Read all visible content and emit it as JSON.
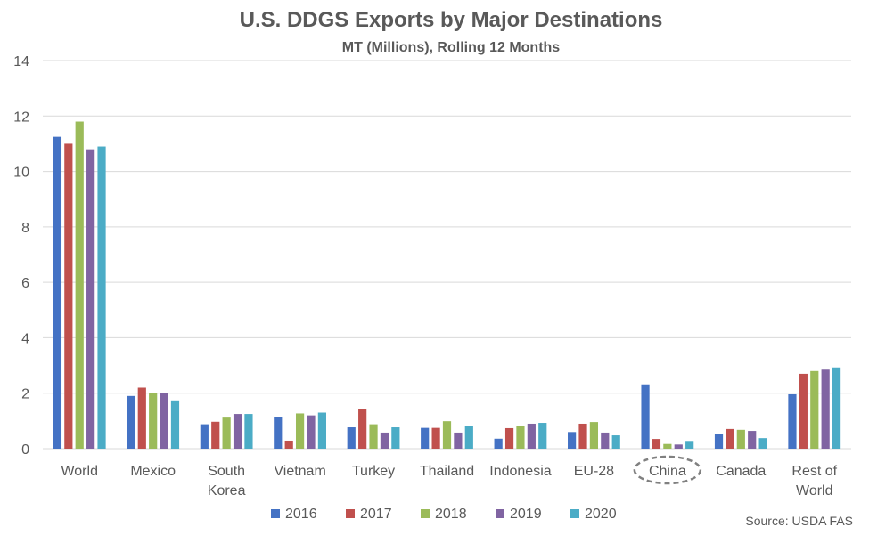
{
  "chart_data": {
    "type": "bar",
    "title": "U.S. DDGS Exports by Major Destinations",
    "subtitle": "MT (Millions), Rolling 12 Months",
    "categories": [
      [
        "World"
      ],
      [
        "Mexico"
      ],
      [
        "South",
        "Korea"
      ],
      [
        "Vietnam"
      ],
      [
        "Turkey"
      ],
      [
        "Thailand"
      ],
      [
        "Indonesia"
      ],
      [
        "EU-28"
      ],
      [
        "China"
      ],
      [
        "Canada"
      ],
      [
        "Rest of",
        "World"
      ]
    ],
    "series": [
      {
        "name": "2016",
        "color": "#4472C4",
        "values": [
          11.25,
          1.9,
          0.88,
          1.15,
          0.77,
          0.75,
          0.36,
          0.6,
          2.32,
          0.52,
          1.96
        ]
      },
      {
        "name": "2017",
        "color": "#C0504D",
        "values": [
          11.0,
          2.2,
          0.97,
          0.29,
          1.42,
          0.75,
          0.74,
          0.9,
          0.35,
          0.71,
          2.7
        ]
      },
      {
        "name": "2018",
        "color": "#9BBB59",
        "values": [
          11.8,
          2.0,
          1.12,
          1.27,
          0.88,
          0.99,
          0.83,
          0.96,
          0.17,
          0.68,
          2.8
        ]
      },
      {
        "name": "2019",
        "color": "#8064A2",
        "values": [
          10.8,
          2.02,
          1.25,
          1.2,
          0.58,
          0.58,
          0.9,
          0.58,
          0.15,
          0.64,
          2.85
        ]
      },
      {
        "name": "2020",
        "color": "#4BACC6",
        "values": [
          10.9,
          1.74,
          1.25,
          1.3,
          0.77,
          0.83,
          0.93,
          0.48,
          0.28,
          0.38,
          2.93
        ]
      }
    ],
    "y_ticks": [
      "0",
      "2",
      "4",
      "6",
      "8",
      "10",
      "12",
      "14"
    ],
    "ylim": [
      0,
      14
    ],
    "grid": true,
    "legend_position": "bottom",
    "highlight_category": "China",
    "source": "Source: USDA FAS"
  }
}
